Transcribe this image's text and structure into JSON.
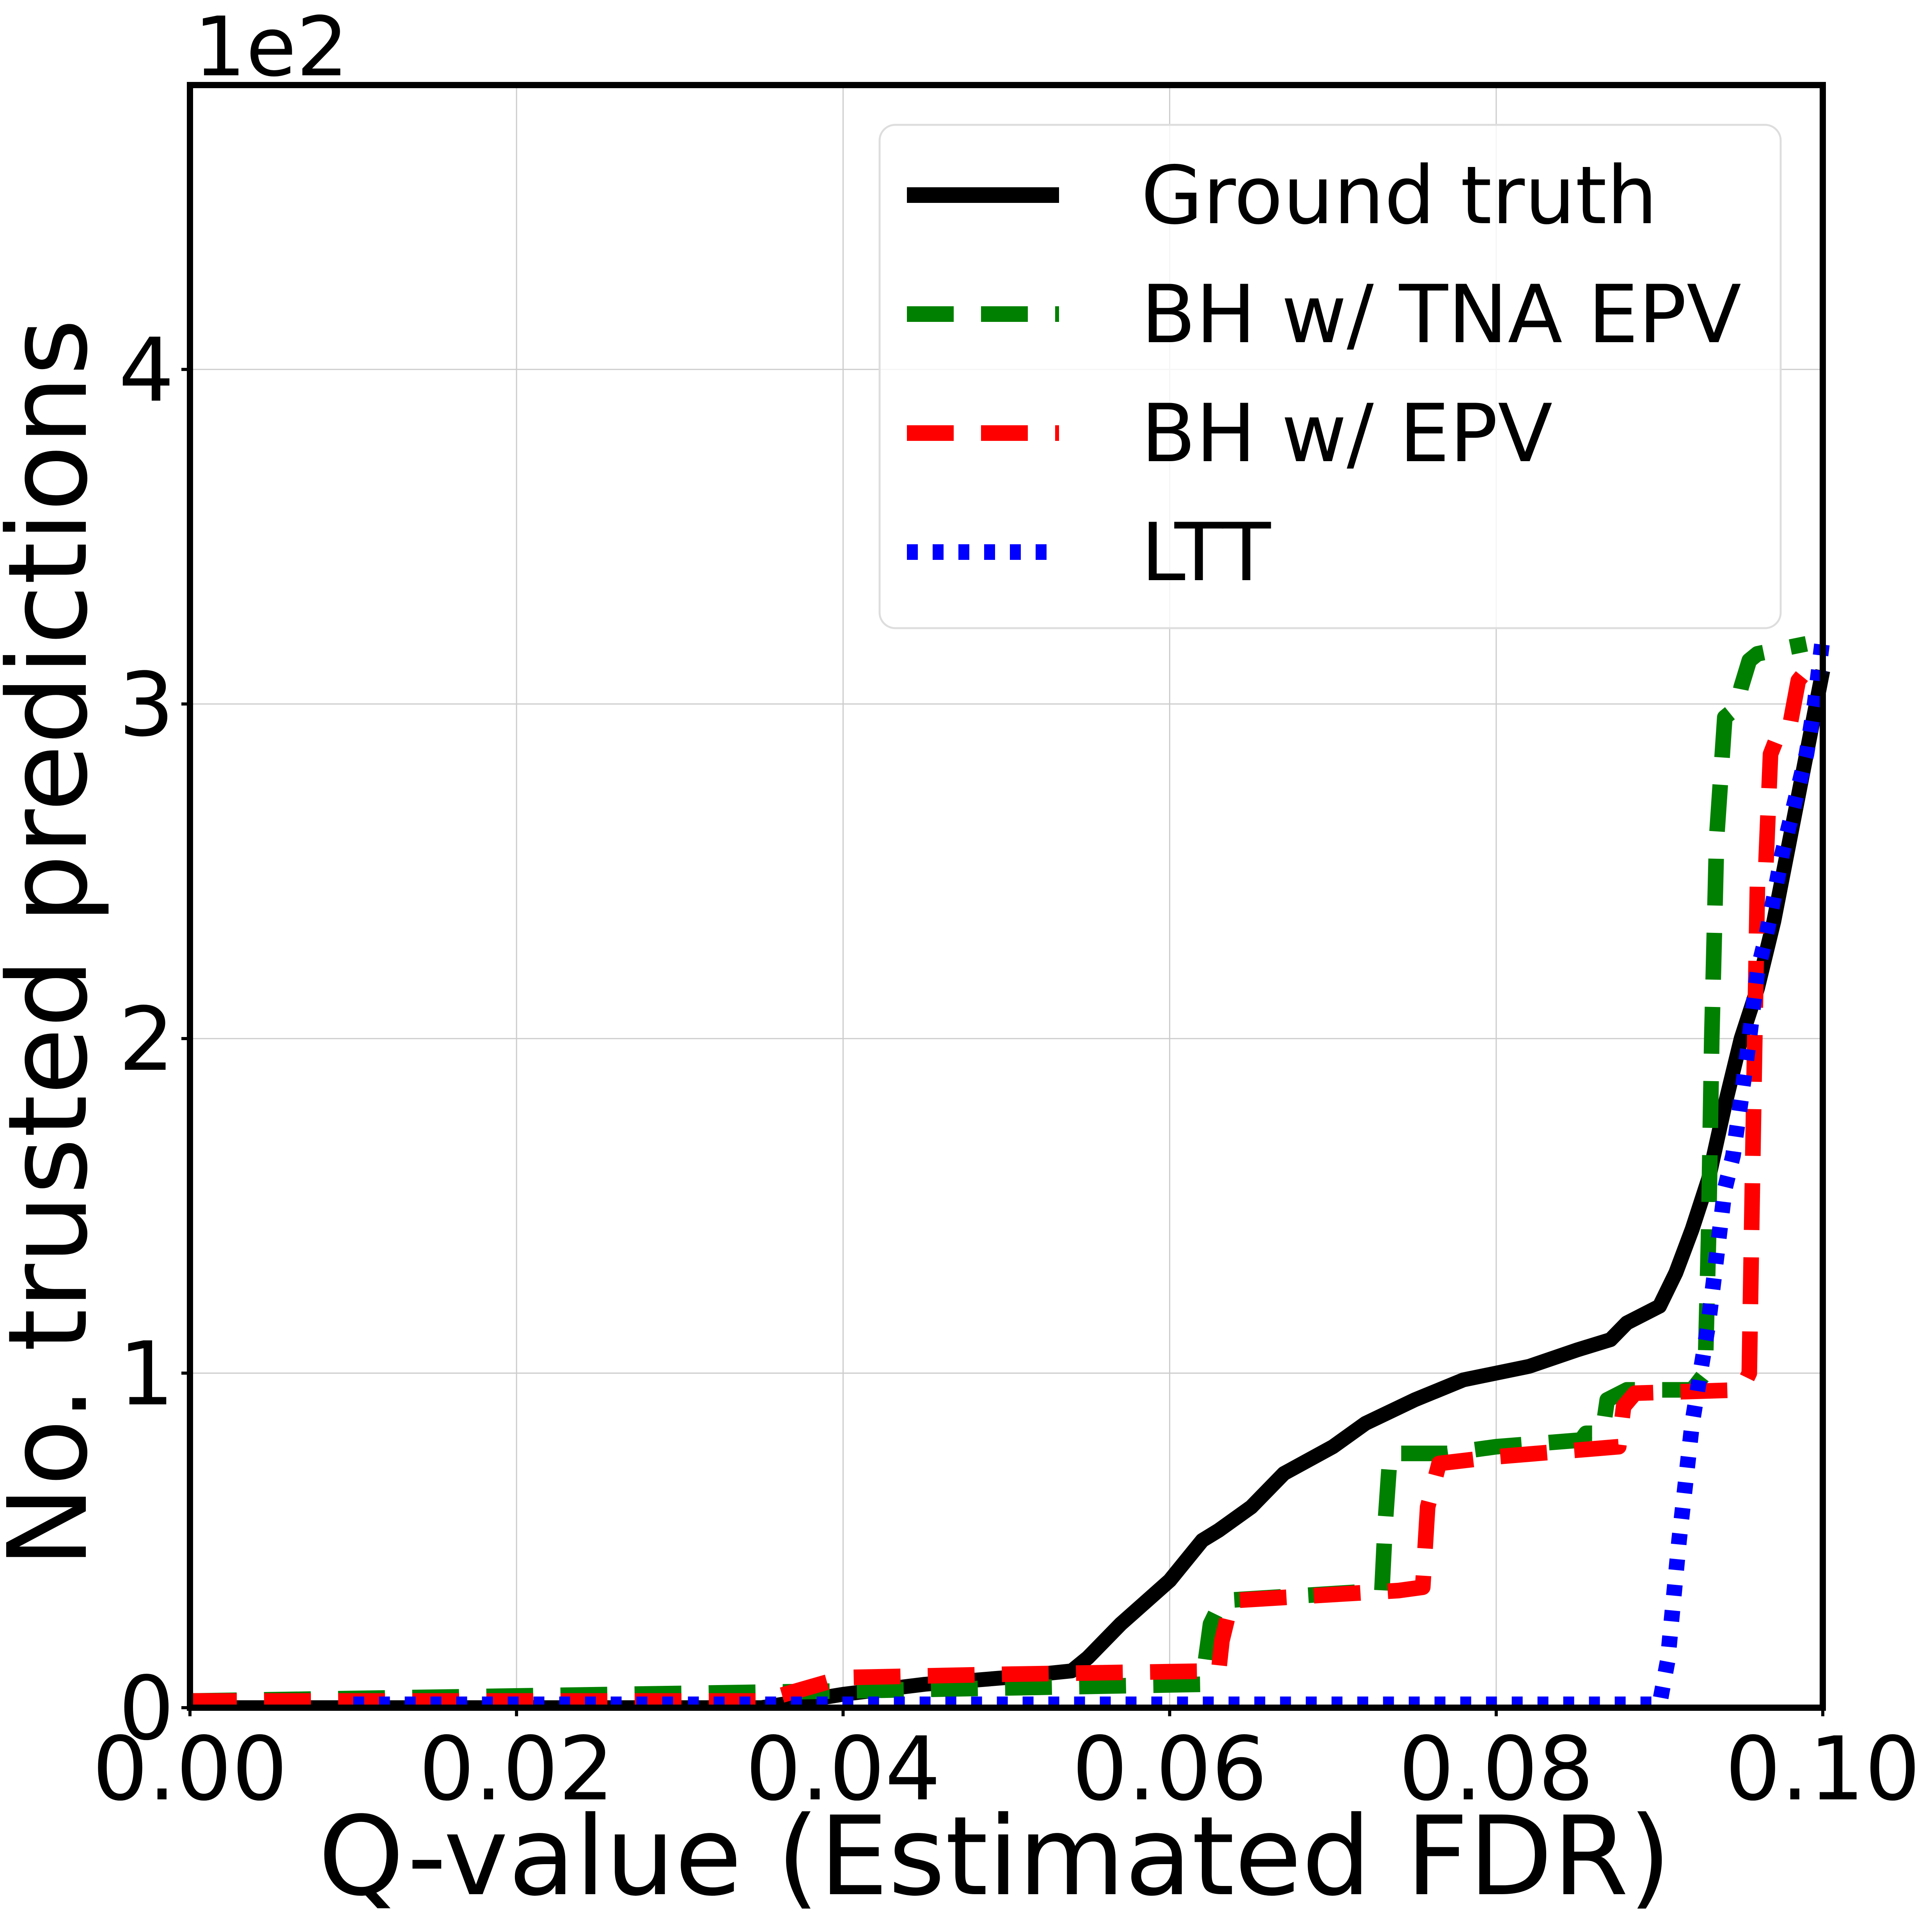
{
  "chart_data": {
    "type": "line",
    "title": "",
    "xlabel": "Q-value (Estimated FDR)",
    "ylabel": "No. trusted predictions",
    "y_scale_label": "1e2",
    "xlim": [
      0.0,
      0.1
    ],
    "ylim": [
      0,
      4.85
    ],
    "x_ticks": [
      0.0,
      0.02,
      0.04,
      0.06,
      0.08,
      0.1
    ],
    "x_tick_labels": [
      "0.00",
      "0.02",
      "0.04",
      "0.06",
      "0.08",
      "0.10"
    ],
    "y_ticks": [
      0,
      1,
      2,
      3,
      4
    ],
    "y_tick_labels": [
      "0",
      "1",
      "2",
      "3",
      "4"
    ],
    "grid": true,
    "legend_position": "top-right",
    "series": [
      {
        "name": "Ground truth",
        "color": "#000000",
        "style": "solid",
        "x": [
          0.0,
          0.035,
          0.04,
          0.045,
          0.05,
          0.054,
          0.055,
          0.057,
          0.06,
          0.062,
          0.063,
          0.065,
          0.067,
          0.07,
          0.072,
          0.075,
          0.078,
          0.082,
          0.085,
          0.087,
          0.088,
          0.09,
          0.091,
          0.092,
          0.093,
          0.094,
          0.095,
          0.096,
          0.097,
          0.098,
          0.099,
          0.1
        ],
        "values": [
          0.0,
          0.0,
          0.04,
          0.07,
          0.09,
          0.11,
          0.15,
          0.25,
          0.38,
          0.5,
          0.53,
          0.6,
          0.7,
          0.78,
          0.85,
          0.92,
          0.98,
          1.02,
          1.07,
          1.1,
          1.15,
          1.2,
          1.3,
          1.43,
          1.58,
          1.8,
          2.0,
          2.15,
          2.35,
          2.6,
          2.85,
          3.1
        ]
      },
      {
        "name": "BH w/ TNA EPV",
        "color": "#008000",
        "style": "dashed",
        "x": [
          0.0,
          0.04,
          0.062,
          0.0625,
          0.0632,
          0.073,
          0.0732,
          0.0735,
          0.076,
          0.077,
          0.08,
          0.0852,
          0.0855,
          0.0865,
          0.0868,
          0.088,
          0.092,
          0.0928,
          0.093,
          0.0932,
          0.0935,
          0.094,
          0.0945,
          0.0948,
          0.095,
          0.0955,
          0.096,
          0.097,
          0.098,
          0.099
        ],
        "values": [
          0.02,
          0.05,
          0.07,
          0.25,
          0.32,
          0.35,
          0.55,
          0.76,
          0.76,
          0.76,
          0.78,
          0.8,
          0.82,
          0.82,
          0.92,
          0.95,
          0.95,
          1.0,
          1.4,
          2.0,
          2.6,
          2.96,
          2.98,
          3.0,
          3.05,
          3.13,
          3.15,
          3.16,
          3.17,
          3.18
        ]
      },
      {
        "name": "BH w/ EPV",
        "color": "#ff0000",
        "style": "dashed",
        "x": [
          0.0,
          0.035,
          0.04,
          0.05,
          0.063,
          0.0632,
          0.0638,
          0.074,
          0.0755,
          0.0758,
          0.0765,
          0.08,
          0.0875,
          0.0878,
          0.0885,
          0.095,
          0.0955,
          0.0958,
          0.096,
          0.0965,
          0.0968,
          0.0972,
          0.0975,
          0.098,
          0.0985,
          0.099,
          0.1
        ],
        "values": [
          0.02,
          0.02,
          0.09,
          0.1,
          0.11,
          0.2,
          0.32,
          0.35,
          0.36,
          0.6,
          0.73,
          0.75,
          0.78,
          0.9,
          0.94,
          0.95,
          1.0,
          1.9,
          2.47,
          2.5,
          2.85,
          2.9,
          2.92,
          2.94,
          3.07,
          3.1,
          3.12
        ]
      },
      {
        "name": "LTT",
        "color": "#0000ff",
        "style": "dotted",
        "x": [
          0.01,
          0.02,
          0.04,
          0.06,
          0.08,
          0.09,
          0.0905,
          0.0912,
          0.092,
          0.0925,
          0.093,
          0.0935,
          0.094,
          0.0945,
          0.095,
          0.0955,
          0.096,
          0.0965,
          0.097,
          0.0975,
          0.098,
          0.0985,
          0.099,
          0.0995,
          0.1
        ],
        "values": [
          0.01,
          0.01,
          0.01,
          0.01,
          0.01,
          0.01,
          0.14,
          0.5,
          0.85,
          1.0,
          1.15,
          1.35,
          1.55,
          1.65,
          1.82,
          2.0,
          2.2,
          2.3,
          2.42,
          2.55,
          2.65,
          2.75,
          2.85,
          3.0,
          3.2
        ]
      }
    ]
  }
}
